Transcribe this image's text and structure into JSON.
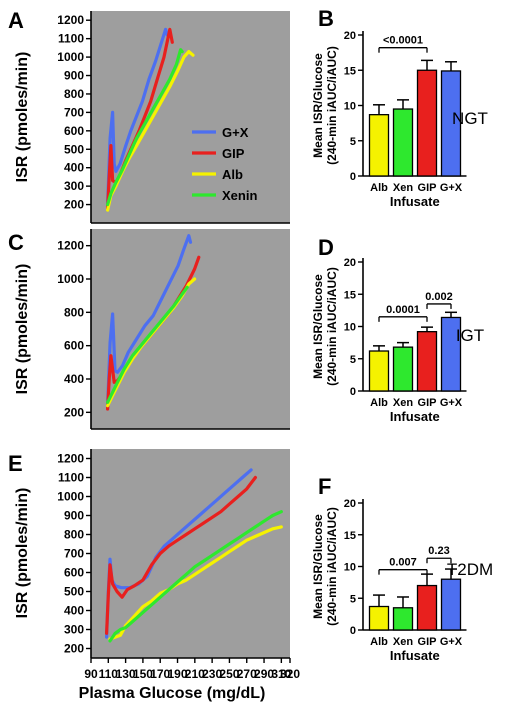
{
  "colors": {
    "gxp": "#4d6ff0",
    "gip": "#e8201e",
    "alb": "#f5f200",
    "xen": "#2ee82e",
    "plot_bg": "#9e9e9e"
  },
  "shared": {
    "xlabel": "Plasma Glucose (mg/dL)",
    "ylabel": "ISR (pmoles/min)",
    "bar_ylabel_line1": "Mean ISR/Glucose",
    "bar_ylabel_line2": "(240-min iAUC/iAUC)",
    "bar_xlabel": "Infusate"
  },
  "chart_data": [
    {
      "id": "A",
      "panel_label": "A",
      "type": "line",
      "xlabel": "",
      "ylabel": "ISR (pmoles/min)",
      "xlim": [
        80,
        320
      ],
      "ylim": [
        100,
        1250
      ],
      "yticks": [
        200,
        300,
        400,
        500,
        600,
        700,
        800,
        900,
        1000,
        1100,
        1200
      ],
      "xticks": [],
      "legend": [
        "G+X",
        "GIP",
        "Alb",
        "Xenin"
      ],
      "legend_position": "right-middle",
      "series": [
        {
          "name": "G+X",
          "color_key": "gxp",
          "x": [
            100,
            103,
            106,
            108,
            110,
            115,
            122,
            128,
            135,
            142,
            150,
            158,
            165,
            170,
            172
          ],
          "y": [
            200,
            560,
            700,
            420,
            380,
            420,
            520,
            600,
            680,
            760,
            880,
            980,
            1080,
            1150,
            1120
          ]
        },
        {
          "name": "GIP",
          "color_key": "gip",
          "x": [
            100,
            102,
            104,
            106,
            110,
            115,
            122,
            130,
            138,
            145,
            152,
            160,
            168,
            175,
            178
          ],
          "y": [
            180,
            350,
            520,
            330,
            320,
            360,
            440,
            520,
            600,
            680,
            760,
            880,
            1000,
            1150,
            1080
          ]
        },
        {
          "name": "Alb",
          "color_key": "alb",
          "x": [
            100,
            104,
            110,
            118,
            126,
            135,
            145,
            155,
            165,
            175,
            185,
            192,
            198,
            203
          ],
          "y": [
            170,
            250,
            300,
            380,
            450,
            520,
            600,
            680,
            760,
            840,
            930,
            1000,
            1030,
            1010
          ]
        },
        {
          "name": "Xenin",
          "color_key": "xen",
          "x": [
            100,
            104,
            110,
            118,
            126,
            135,
            145,
            155,
            165,
            175,
            183,
            188,
            190
          ],
          "y": [
            200,
            260,
            320,
            390,
            470,
            560,
            640,
            720,
            800,
            880,
            960,
            1040,
            1030
          ]
        }
      ]
    },
    {
      "id": "C",
      "panel_label": "C",
      "type": "line",
      "xlabel": "",
      "ylabel": "ISR (pmoles/min)",
      "xlim": [
        80,
        320
      ],
      "ylim": [
        100,
        1300
      ],
      "yticks": [
        200,
        400,
        600,
        800,
        1000,
        1200
      ],
      "xticks": [],
      "series": [
        {
          "name": "G+X",
          "color_key": "gxp",
          "x": [
            100,
            103,
            106,
            109,
            112,
            118,
            125,
            135,
            145,
            155,
            165,
            175,
            185,
            192,
            198,
            200
          ],
          "y": [
            240,
            620,
            790,
            450,
            440,
            480,
            560,
            640,
            720,
            780,
            880,
            980,
            1080,
            1180,
            1260,
            1220
          ]
        },
        {
          "name": "GIP",
          "color_key": "gip",
          "x": [
            100,
            102,
            104,
            108,
            112,
            118,
            126,
            135,
            145,
            155,
            165,
            175,
            185,
            195,
            205,
            210
          ],
          "y": [
            220,
            400,
            540,
            380,
            390,
            430,
            490,
            560,
            620,
            680,
            740,
            800,
            880,
            960,
            1060,
            1130
          ]
        },
        {
          "name": "Alb",
          "color_key": "alb",
          "x": [
            100,
            105,
            112,
            120,
            130,
            140,
            150,
            160,
            170,
            180,
            190,
            198,
            205
          ],
          "y": [
            240,
            290,
            360,
            440,
            520,
            590,
            650,
            710,
            770,
            830,
            900,
            970,
            1000
          ]
        },
        {
          "name": "Xenin",
          "color_key": "xen",
          "x": [
            100,
            106,
            112,
            120,
            130,
            140,
            150,
            160,
            170,
            180,
            190,
            196
          ],
          "y": [
            260,
            320,
            380,
            460,
            540,
            600,
            660,
            720,
            780,
            840,
            910,
            950
          ]
        }
      ]
    },
    {
      "id": "E",
      "panel_label": "E",
      "type": "line",
      "xlabel": "Plasma Glucose (mg/dL)",
      "ylabel": "ISR (pmoles/min)",
      "xlim": [
        90,
        320
      ],
      "ylim": [
        150,
        1250
      ],
      "yticks": [
        200,
        300,
        400,
        500,
        600,
        700,
        800,
        900,
        1000,
        1100,
        1200
      ],
      "xticks": [
        90,
        110,
        130,
        150,
        170,
        190,
        210,
        230,
        250,
        270,
        290,
        310,
        320
      ],
      "series": [
        {
          "name": "G+X",
          "color_key": "gxp",
          "x": [
            108,
            110,
            112,
            114,
            118,
            125,
            135,
            145,
            155,
            165,
            175,
            185,
            195,
            205,
            215,
            225,
            235,
            245,
            255,
            265,
            275
          ],
          "y": [
            260,
            500,
            670,
            560,
            530,
            520,
            520,
            540,
            580,
            680,
            740,
            780,
            820,
            860,
            900,
            940,
            980,
            1020,
            1060,
            1100,
            1140
          ]
        },
        {
          "name": "GIP",
          "color_key": "gip",
          "x": [
            108,
            110,
            112,
            115,
            120,
            126,
            132,
            140,
            150,
            160,
            170,
            180,
            190,
            200,
            210,
            220,
            230,
            240,
            250,
            260,
            270,
            280
          ],
          "y": [
            280,
            480,
            640,
            540,
            500,
            470,
            510,
            530,
            560,
            640,
            700,
            740,
            770,
            800,
            830,
            860,
            890,
            920,
            960,
            1000,
            1040,
            1100
          ]
        },
        {
          "name": "Alb",
          "color_key": "alb",
          "x": [
            112,
            118,
            124,
            130,
            140,
            150,
            160,
            170,
            180,
            190,
            200,
            210,
            220,
            230,
            240,
            250,
            260,
            270,
            280,
            290,
            300,
            310
          ],
          "y": [
            250,
            260,
            270,
            320,
            370,
            420,
            450,
            490,
            510,
            540,
            560,
            590,
            620,
            650,
            680,
            710,
            740,
            770,
            790,
            810,
            830,
            840
          ]
        },
        {
          "name": "Xenin",
          "color_key": "xen",
          "x": [
            112,
            118,
            124,
            130,
            140,
            150,
            160,
            170,
            180,
            190,
            200,
            210,
            220,
            230,
            240,
            250,
            260,
            270,
            280,
            290,
            300,
            310
          ],
          "y": [
            240,
            280,
            300,
            310,
            350,
            390,
            430,
            470,
            510,
            550,
            590,
            630,
            660,
            690,
            720,
            750,
            780,
            810,
            840,
            870,
            900,
            920
          ]
        }
      ]
    },
    {
      "id": "B",
      "panel_label": "B",
      "type": "bar",
      "side_label": "NGT",
      "categories": [
        "Alb",
        "Xen",
        "GIP",
        "G+X"
      ],
      "values": [
        8.7,
        9.5,
        15.0,
        14.9
      ],
      "errors": [
        1.4,
        1.3,
        1.4,
        1.3
      ],
      "color_keys": [
        "alb",
        "xen",
        "gip",
        "gxp"
      ],
      "ylim": [
        0,
        20
      ],
      "yticks": [
        0,
        5,
        10,
        15,
        20
      ],
      "xlabel": "Infusate",
      "annotations": [
        {
          "from": 0,
          "to": 2,
          "text": "<0.0001",
          "y": 18.2
        }
      ]
    },
    {
      "id": "D",
      "panel_label": "D",
      "type": "bar",
      "side_label": "IGT",
      "categories": [
        "Alb",
        "Xen",
        "GIP",
        "G+X"
      ],
      "values": [
        6.2,
        6.8,
        9.2,
        11.4
      ],
      "errors": [
        0.8,
        0.7,
        0.7,
        0.8
      ],
      "color_keys": [
        "alb",
        "xen",
        "gip",
        "gxp"
      ],
      "ylim": [
        0,
        20
      ],
      "yticks": [
        0,
        5,
        10,
        15,
        20
      ],
      "xlabel": "Infusate",
      "annotations": [
        {
          "from": 0,
          "to": 2,
          "text": "0.0001",
          "y": 11.5
        },
        {
          "from": 2,
          "to": 3,
          "text": "0.002",
          "y": 13.5
        }
      ]
    },
    {
      "id": "F",
      "panel_label": "F",
      "type": "bar",
      "side_label": "T2DM",
      "categories": [
        "Alb",
        "Xen",
        "GIP",
        "G+X"
      ],
      "values": [
        3.7,
        3.5,
        7.0,
        8.0
      ],
      "errors": [
        1.8,
        1.7,
        1.8,
        1.6
      ],
      "color_keys": [
        "alb",
        "xen",
        "gip",
        "gxp"
      ],
      "ylim": [
        0,
        20
      ],
      "yticks": [
        0,
        5,
        10,
        15,
        20
      ],
      "xlabel": "Infusate",
      "annotations": [
        {
          "from": 0,
          "to": 2,
          "text": "0.007",
          "y": 9.5
        },
        {
          "from": 2,
          "to": 3,
          "text": "0.23",
          "y": 11.3
        }
      ]
    }
  ]
}
